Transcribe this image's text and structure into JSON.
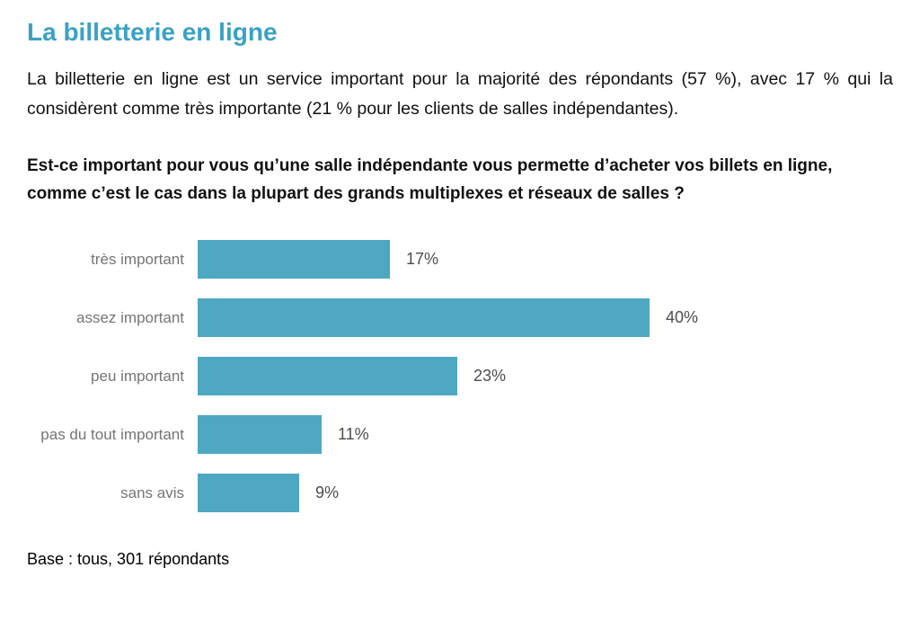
{
  "page": {
    "title": "La billetterie en ligne",
    "intro": "La billetterie en ligne est un service important pour la majorité des répondants (57 %), avec 17 % qui la considèrent comme très importante (21 % pour les clients de salles indépendantes).",
    "question": "Est-ce important pour vous qu’une salle indépendante vous permette d’acheter vos billets en ligne, comme c’est le cas dans la plupart des grands multiplexes et réseaux de salles ?",
    "base_note": "Base : tous, 301 répondants"
  },
  "colors": {
    "accent_title": "#3AA2C5",
    "bar": "#4FA8C1",
    "category_label": "#757575",
    "value_label": "#4D4D4D"
  },
  "chart_data": {
    "type": "bar",
    "orientation": "horizontal",
    "title": "",
    "xlabel": "",
    "ylabel": "",
    "categories": [
      "très important",
      "assez important",
      "peu important",
      "pas du tout important",
      "sans avis"
    ],
    "values": [
      17,
      40,
      23,
      11,
      9
    ],
    "value_labels": [
      "17%",
      "40%",
      "23%",
      "11%",
      "9%"
    ],
    "xlim": [
      0,
      40
    ],
    "grid": false,
    "legend": false,
    "bar_color": "#4FA8C1"
  }
}
